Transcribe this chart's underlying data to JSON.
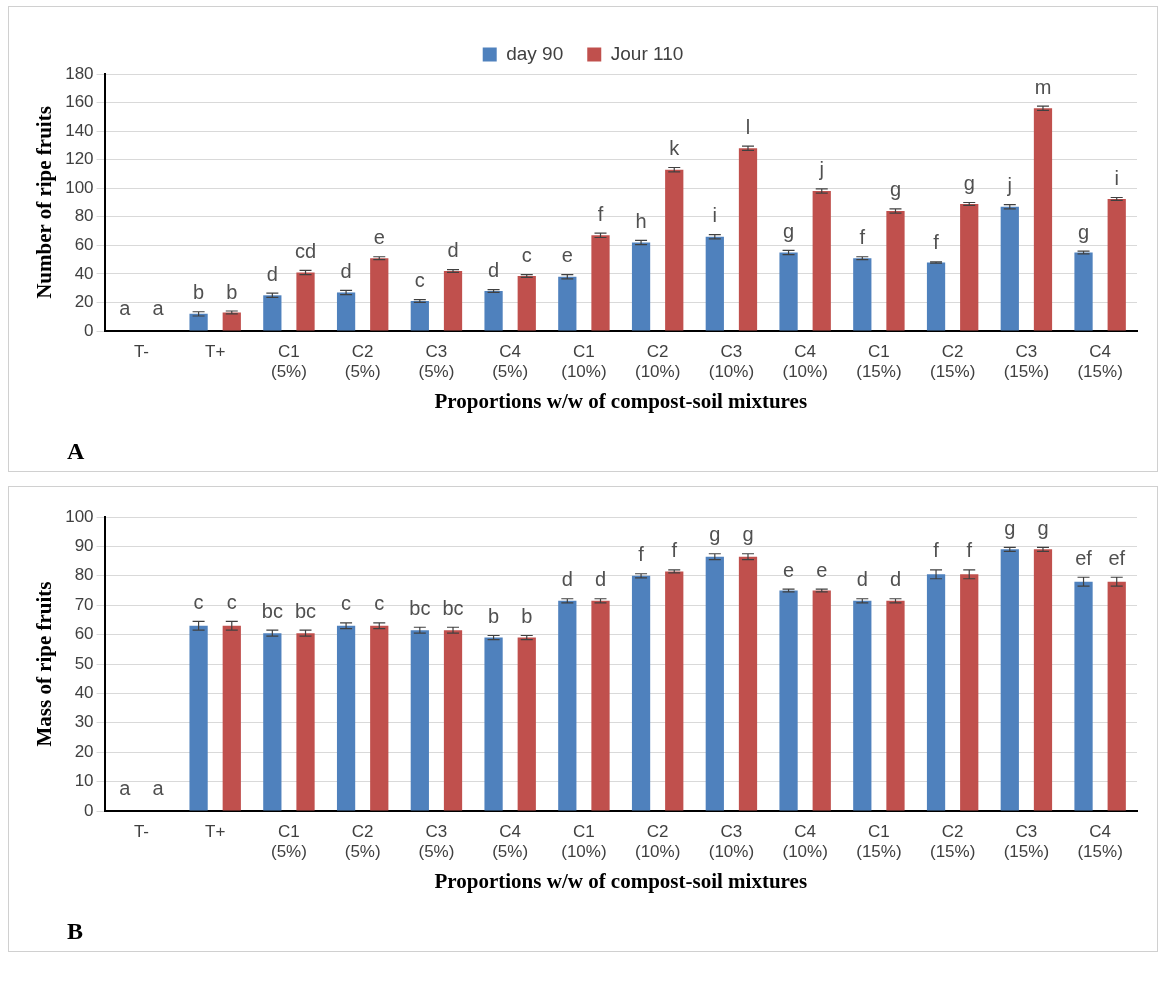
{
  "chart_data": [
    {
      "type": "bar",
      "categories": [
        "T-",
        "T+",
        "C1\n(5%)",
        "C2\n(5%)",
        "C3\n(5%)",
        "C4\n(5%)",
        "C1\n(10%)",
        "C2\n(10%)",
        "C3\n(10%)",
        "C4\n(10%)",
        "C1\n(15%)",
        "C2\n(15%)",
        "C3\n(15%)",
        "C4\n(15%)"
      ],
      "series": [
        {
          "name": "day 90",
          "color": "#4f81bd",
          "values": [
            0,
            12,
            25,
            27,
            21,
            28,
            38,
            62,
            66,
            55,
            51,
            48,
            87,
            55
          ],
          "errors": [
            null,
            1.5,
            1.5,
            1.5,
            1,
            1,
            1.5,
            1.5,
            1.5,
            1.5,
            1,
            0.5,
            1.5,
            1
          ],
          "value_labels": [
            "a",
            "b",
            "d",
            "d",
            "c",
            "d",
            "e",
            "h",
            "i",
            "g",
            "f",
            "f",
            "j",
            "g"
          ]
        },
        {
          "name": "Jour 110",
          "color": "#c0504d",
          "values": [
            0,
            13,
            41,
            51,
            42,
            38.5,
            67,
            113,
            128,
            98,
            84,
            89,
            156,
            92.5
          ],
          "errors": [
            null,
            1,
            1.5,
            1,
            1,
            1,
            1.5,
            1.5,
            1.5,
            1.5,
            1.5,
            1,
            1.5,
            1
          ],
          "value_labels": [
            "a",
            "b",
            "cd",
            "e",
            "d",
            "c",
            "f",
            "k",
            "l",
            "j",
            "g",
            "g",
            "m",
            "i"
          ]
        }
      ],
      "ylim": [
        0,
        180
      ],
      "yticks": [
        0,
        20,
        40,
        60,
        80,
        100,
        120,
        140,
        160,
        180
      ],
      "grid": "y",
      "legend": "top",
      "xlabel": "Proportions w/w of compost-soil mixtures",
      "ylabel": "Number of ripe fruits",
      "annotations": [
        "A"
      ]
    },
    {
      "type": "bar",
      "categories": [
        "T-",
        "T+",
        "C1\n(5%)",
        "C2\n(5%)",
        "C3\n(5%)",
        "C4\n(5%)",
        "C1\n(10%)",
        "C2\n(10%)",
        "C3\n(10%)",
        "C4\n(10%)",
        "C1\n(15%)",
        "C2\n(15%)",
        "C3\n(15%)",
        "C4\n(15%)"
      ],
      "series": [
        {
          "color": "#4f81bd",
          "values": [
            0,
            63,
            60.5,
            63,
            61.5,
            59,
            71.5,
            80,
            86.5,
            75,
            71.5,
            80.5,
            89,
            78
          ],
          "errors": [
            null,
            1.5,
            1,
            1,
            1,
            0.7,
            0.7,
            0.7,
            1,
            0.5,
            0.7,
            1.5,
            0.7,
            1.5
          ],
          "value_labels": [
            "a",
            "c",
            "bc",
            "c",
            "bc",
            "b",
            "d",
            "f",
            "g",
            "e",
            "d",
            "f",
            "g",
            "ef"
          ]
        },
        {
          "color": "#c0504d",
          "values": [
            0,
            63,
            60.5,
            63,
            61.5,
            59,
            71.5,
            81.5,
            86.5,
            75,
            71.5,
            80.5,
            89,
            78
          ],
          "errors": [
            null,
            1.5,
            1,
            1,
            1,
            0.7,
            0.7,
            0.5,
            1,
            0.5,
            0.7,
            1.5,
            0.7,
            1.5
          ],
          "value_labels": [
            "a",
            "c",
            "bc",
            "c",
            "bc",
            "b",
            "d",
            "f",
            "g",
            "e",
            "d",
            "f",
            "g",
            "ef"
          ]
        }
      ],
      "ylim": [
        0,
        100
      ],
      "yticks": [
        0,
        10,
        20,
        30,
        40,
        50,
        60,
        70,
        80,
        90,
        100
      ],
      "grid": "y",
      "xlabel": "Proportions w/w of compost-soil mixtures",
      "ylabel": "Mass of ripe fruits",
      "annotations": [
        "B"
      ]
    }
  ]
}
